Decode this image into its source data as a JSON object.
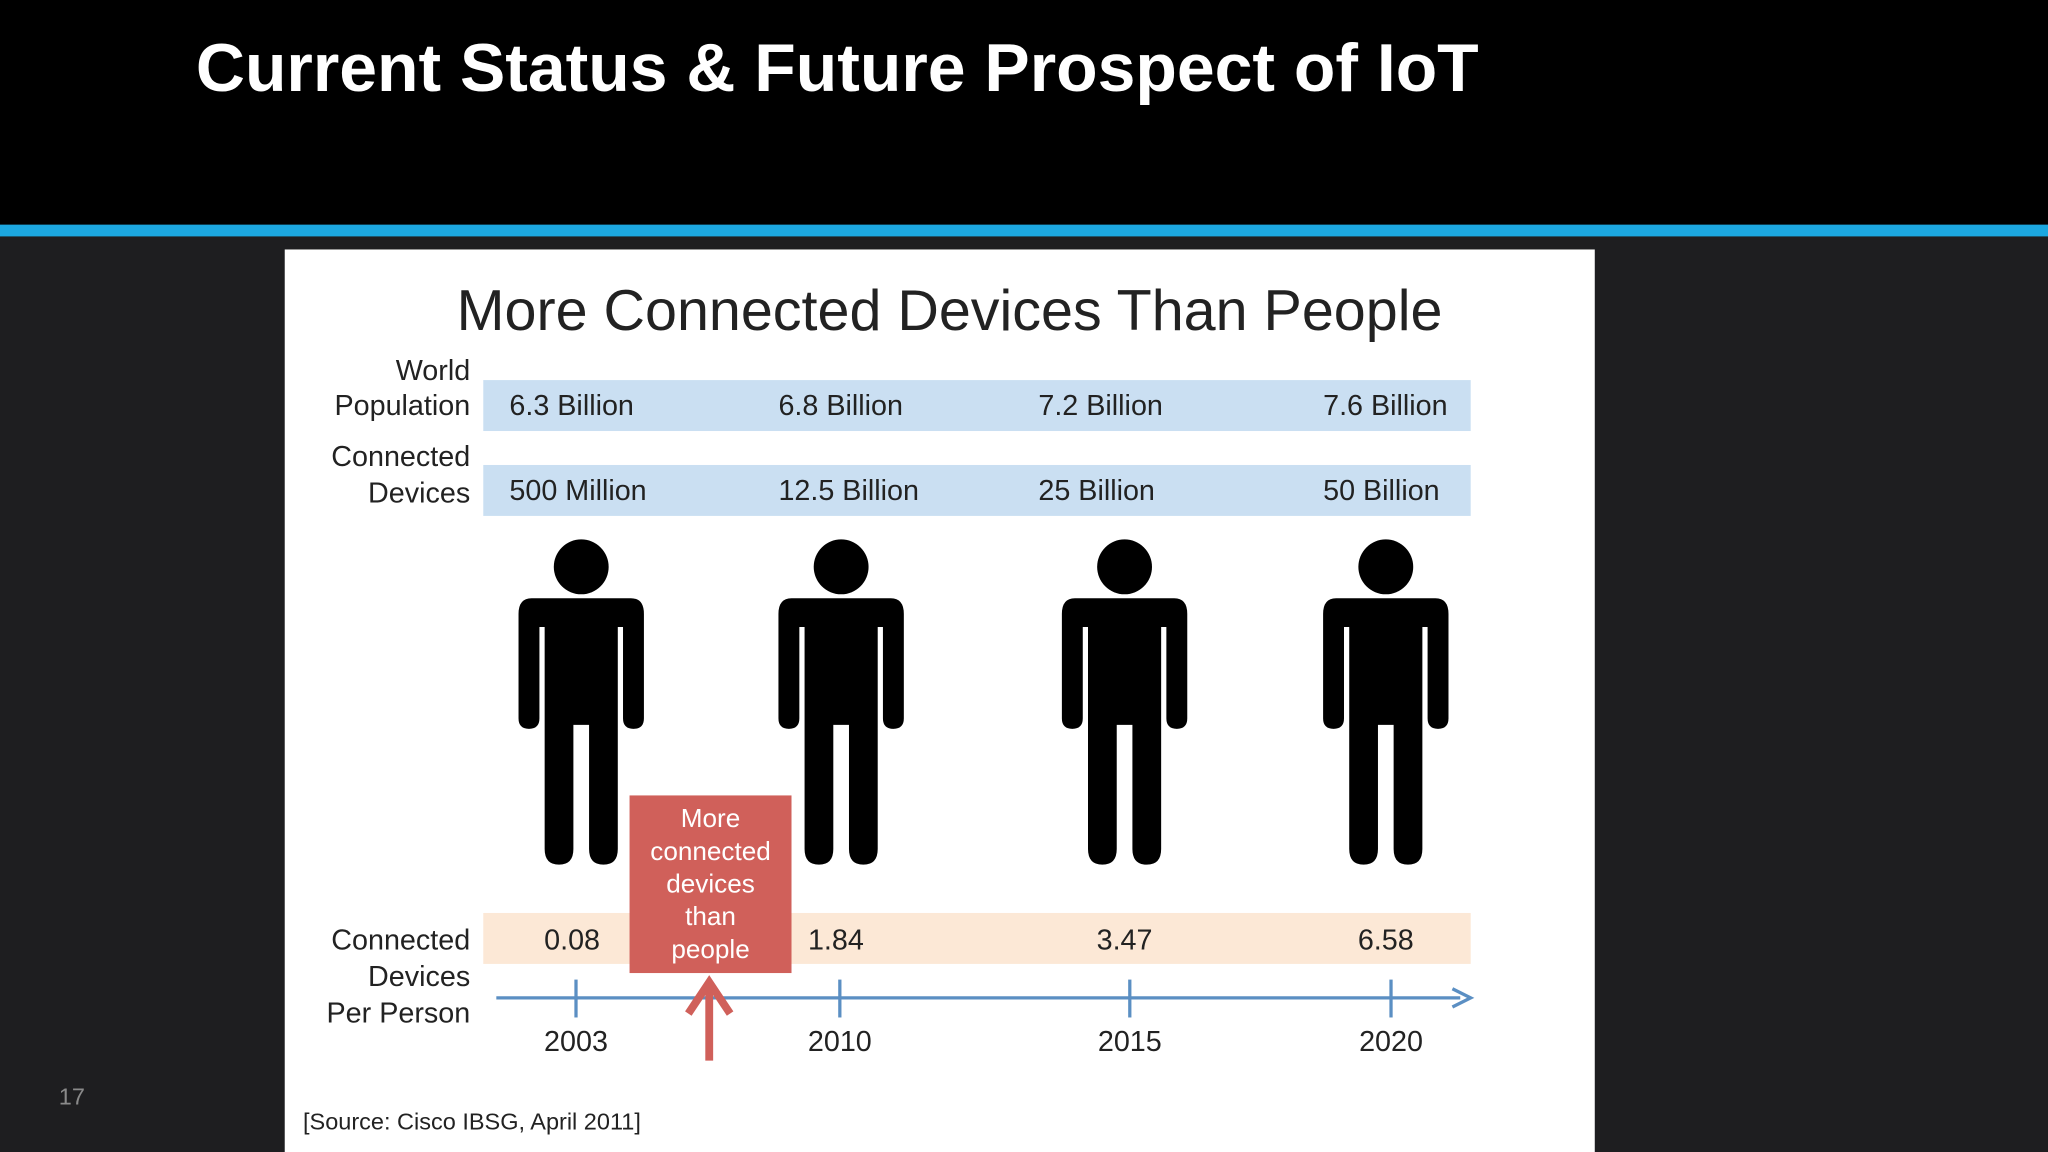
{
  "slide": {
    "title": "Current Status & Future Prospect of IoT",
    "page_number": "17"
  },
  "infographic": {
    "title": "More Connected Devices Than People",
    "rows": [
      {
        "label_lines": [
          "World",
          "Population"
        ],
        "values": [
          "6.3 Billion",
          "6.8 Billion",
          "7.2 Billion",
          "7.6 Billion"
        ]
      },
      {
        "label_lines": [
          "Connected",
          "Devices"
        ],
        "values": [
          "500 Million",
          "12.5 Billion",
          "25 Billion",
          "50 Billion"
        ]
      }
    ],
    "per_person": {
      "label_lines": [
        "Connected",
        "Devices",
        "Per Person"
      ],
      "values": [
        0.08,
        1.84,
        3.47,
        6.58
      ]
    },
    "years": [
      2003,
      2010,
      2015,
      2020
    ],
    "callout_lines": [
      "More",
      "connected",
      "devices",
      "than",
      "people"
    ],
    "source": "[Source: Cisco IBSG, April 2011]"
  }
}
